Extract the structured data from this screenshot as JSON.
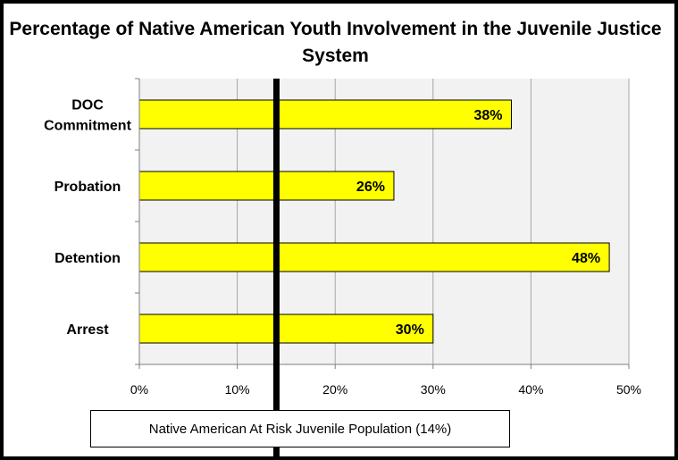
{
  "chart_data": {
    "type": "bar",
    "orientation": "horizontal",
    "title": "Percentage of  Native American Youth Involvement in the Juvenile Justice System",
    "categories": [
      "Arrest",
      "Detention",
      "Probation",
      "DOC Commitment"
    ],
    "category_display": [
      "Arrest",
      "Detention",
      "Probation",
      "DOC\nCommitment"
    ],
    "values": [
      30,
      48,
      26,
      38
    ],
    "data_labels": [
      "30%",
      "48%",
      "26%",
      "38%"
    ],
    "xlim": [
      0,
      50
    ],
    "xticks": [
      0,
      10,
      20,
      30,
      40,
      50
    ],
    "xtick_labels": [
      "0%",
      "10%",
      "20%",
      "30%",
      "40%",
      "50%"
    ],
    "grid": "vertical",
    "bar_color": "#ffff00",
    "reference_line": {
      "value": 14,
      "label": "Native American At Risk Juvenile Population (14%)",
      "color": "#000000"
    }
  }
}
